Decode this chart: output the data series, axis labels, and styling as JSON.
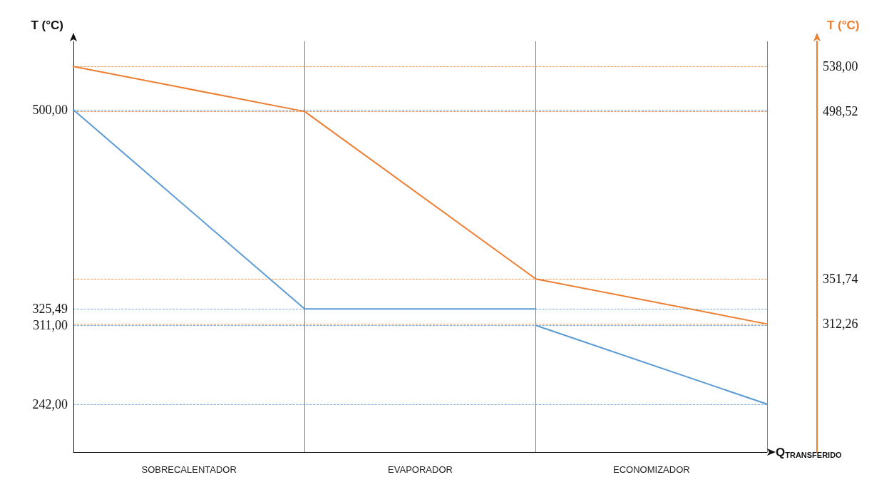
{
  "chart_data": {
    "type": "line",
    "xlabel": "Q$_{TRANSFERIDO}$",
    "ylabel": "T (°C)",
    "y2label": "T (°C)",
    "categories": [
      null,
      null,
      null,
      null
    ],
    "ylim": [
      200,
      560
    ],
    "y2lim": [
      200,
      560
    ],
    "yticks": [
      {
        "value": 242,
        "label": "242,00"
      },
      {
        "value": 311,
        "label": "311,00"
      },
      {
        "value": 325.49,
        "label": "325,49"
      },
      {
        "value": 500,
        "label": "500,00"
      }
    ],
    "y2ticks": [
      {
        "value": 312.26,
        "label": "312,26"
      },
      {
        "value": 351.74,
        "label": "351,74"
      },
      {
        "value": 498.52,
        "label": "498,52"
      },
      {
        "value": 538,
        "label": "538,00"
      }
    ],
    "grid": true,
    "marker": "none",
    "line_style": "solid",
    "series": [
      {
        "color": "#5b9bd5",
        "values": [
          500,
          325.49,
          325.49,
          null
        ]
      },
      {
        "color": "#5b9bd5",
        "values": [
          null,
          null,
          311,
          242
        ]
      },
      {
        "color": "#ed7d31",
        "axis": "y2",
        "values": [
          538,
          498.52,
          351.74,
          312.26
        ]
      }
    ],
    "annotations": [
      "SOBRECALENTADOR",
      "EVAPORADOR",
      "ECONOMIZADOR"
    ]
  }
}
